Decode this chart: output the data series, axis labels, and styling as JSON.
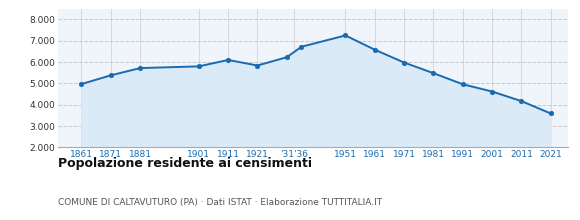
{
  "years": [
    1861,
    1871,
    1881,
    1901,
    1911,
    1921,
    1931,
    1936,
    1951,
    1961,
    1971,
    1981,
    1991,
    2001,
    2011,
    2021
  ],
  "population": [
    4970,
    5380,
    5720,
    5800,
    6100,
    5840,
    6230,
    6720,
    7250,
    6580,
    5980,
    5480,
    4960,
    4620,
    4170,
    3590
  ],
  "x_labels": [
    "1861",
    "1871",
    "1881",
    "1901",
    "1911",
    "1921",
    "'31'36",
    "1951",
    "1961",
    "1971",
    "1981",
    "1991",
    "2001",
    "2011",
    "2021"
  ],
  "x_positions": [
    1861,
    1871,
    1881,
    1901,
    1911,
    1921,
    1933.5,
    1951,
    1961,
    1971,
    1981,
    1991,
    2001,
    2011,
    2021
  ],
  "line_color": "#1a6ab0",
  "fill_color": "#daeaf7",
  "marker_color": "#1a6ab0",
  "grid_color": "#c8c8c8",
  "bg_color": "#f0f5fb",
  "ylim": [
    2000,
    8500
  ],
  "yticks": [
    2000,
    3000,
    4000,
    5000,
    6000,
    7000,
    8000
  ],
  "title": "Popolazione residente ai censimenti",
  "subtitle": "COMUNE DI CALTAVUTURO (PA) · Dati ISTAT · Elaborazione TUTTITALIA.IT",
  "title_fontsize": 9,
  "subtitle_fontsize": 6.5,
  "tick_color": "#1a6ab0"
}
